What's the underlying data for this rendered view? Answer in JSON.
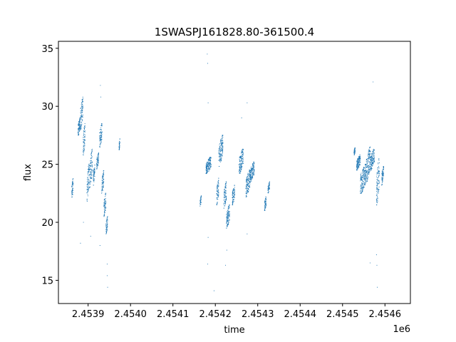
{
  "chart_data": {
    "type": "scatter",
    "title": "1SWASPJ161828.80-361500.4",
    "xlabel": "time",
    "ylabel": "flux",
    "x_offset_label": "1e6",
    "xlim": [
      2453830,
      2454660
    ],
    "ylim": [
      13.0,
      35.6
    ],
    "x_ticks": [
      2453900,
      2454000,
      2454100,
      2454200,
      2454300,
      2454400,
      2454500,
      2454600
    ],
    "x_tick_labels": [
      "2.4539",
      "2.4540",
      "2.4541",
      "2.4542",
      "2.4543",
      "2.4544",
      "2.4545",
      "2.4546"
    ],
    "y_ticks": [
      15,
      20,
      25,
      30,
      35
    ],
    "y_tick_labels": [
      "15",
      "20",
      "25",
      "30",
      "35"
    ],
    "grid": false,
    "legend": "none",
    "marker_color": "#1f77b4",
    "series": [
      {
        "clusters": [
          {
            "x": [
              2453861,
              2453865
            ],
            "y": [
              22.0,
              23.8
            ]
          },
          {
            "x": [
              2453876,
              2453882
            ],
            "y": [
              27.5,
              29.0
            ]
          },
          {
            "x": [
              2453882,
              2453888
            ],
            "y": [
              28.0,
              30.8
            ]
          },
          {
            "x": [
              2453888,
              2453893
            ],
            "y": [
              25.8,
              28.5
            ]
          },
          {
            "x": [
              2453897,
              2453902
            ],
            "y": [
              21.8,
              25.0
            ]
          },
          {
            "x": [
              2453903,
              2453910
            ],
            "y": [
              23.0,
              26.3
            ]
          },
          {
            "x": [
              2453912,
              2453916
            ],
            "y": [
              23.2,
              25.0
            ]
          },
          {
            "x": [
              2453920,
              2453925
            ],
            "y": [
              24.6,
              26.0
            ]
          },
          {
            "x": [
              2453927,
              2453933
            ],
            "y": [
              26.5,
              28.5
            ]
          },
          {
            "x": [
              2453932,
              2453937
            ],
            "y": [
              22.5,
              24.5
            ]
          },
          {
            "x": [
              2453937,
              2453942
            ],
            "y": [
              20.5,
              22.5
            ]
          },
          {
            "x": [
              2453942,
              2453946
            ],
            "y": [
              19.0,
              20.5
            ]
          },
          {
            "x": [
              2453973,
              2453975
            ],
            "y": [
              26.2,
              27.2
            ]
          },
          {
            "x": [
              2454164,
              2454167
            ],
            "y": [
              21.4,
              22.3
            ]
          },
          {
            "x": [
              2454178,
              2454190
            ],
            "y": [
              24.2,
              25.6
            ]
          },
          {
            "x": [
              2454203,
              2454208
            ],
            "y": [
              21.5,
              23.8
            ]
          },
          {
            "x": [
              2454208,
              2454218
            ],
            "y": [
              24.8,
              27.5
            ]
          },
          {
            "x": [
              2454220,
              2454226
            ],
            "y": [
              21.0,
              23.5
            ]
          },
          {
            "x": [
              2454226,
              2454234
            ],
            "y": [
              19.5,
              21.5
            ]
          },
          {
            "x": [
              2454240,
              2454246
            ],
            "y": [
              21.5,
              23.2
            ]
          },
          {
            "x": [
              2454256,
              2454266
            ],
            "y": [
              24.2,
              26.3
            ]
          },
          {
            "x": [
              2454272,
              2454282
            ],
            "y": [
              22.2,
              24.5
            ]
          },
          {
            "x": [
              2454282,
              2454292
            ],
            "y": [
              23.5,
              25.2
            ]
          },
          {
            "x": [
              2454316,
              2454320
            ],
            "y": [
              21.0,
              22.2
            ]
          },
          {
            "x": [
              2454324,
              2454328
            ],
            "y": [
              22.5,
              23.5
            ]
          },
          {
            "x": [
              2454527,
              2454530
            ],
            "y": [
              25.8,
              26.5
            ]
          },
          {
            "x": [
              2454533,
              2454542
            ],
            "y": [
              24.5,
              25.8
            ]
          },
          {
            "x": [
              2454542,
              2454556
            ],
            "y": [
              22.5,
              25.0
            ]
          },
          {
            "x": [
              2454556,
              2454566
            ],
            "y": [
              23.5,
              26.5
            ]
          },
          {
            "x": [
              2454566,
              2454575
            ],
            "y": [
              24.5,
              26.3
            ]
          },
          {
            "x": [
              2454580,
              2454587
            ],
            "y": [
              21.5,
              25.5
            ]
          },
          {
            "x": [
              2454592,
              2454597
            ],
            "y": [
              23.2,
              24.8
            ]
          }
        ],
        "outliers": [
          [
            2453882,
            18.2
          ],
          [
            2453889,
            20.0
          ],
          [
            2453906,
            18.8
          ],
          [
            2453928,
            18.0
          ],
          [
            2453929,
            31.8
          ],
          [
            2453930,
            30.8
          ],
          [
            2453945,
            16.4
          ],
          [
            2453945,
            15.4
          ],
          [
            2453946,
            14.4
          ],
          [
            2454181,
            34.5
          ],
          [
            2454182,
            33.7
          ],
          [
            2454183,
            30.3
          ],
          [
            2454182,
            16.4
          ],
          [
            2454183,
            18.7
          ],
          [
            2454197,
            14.1
          ],
          [
            2454224,
            16.3
          ],
          [
            2454227,
            17.6
          ],
          [
            2454262,
            29.0
          ],
          [
            2454275,
            30.3
          ],
          [
            2454275,
            19.0
          ],
          [
            2454572,
            32.1
          ],
          [
            2454580,
            17.2
          ],
          [
            2454581,
            16.3
          ],
          [
            2454582,
            14.4
          ],
          [
            2454565,
            16.5
          ]
        ]
      }
    ]
  }
}
